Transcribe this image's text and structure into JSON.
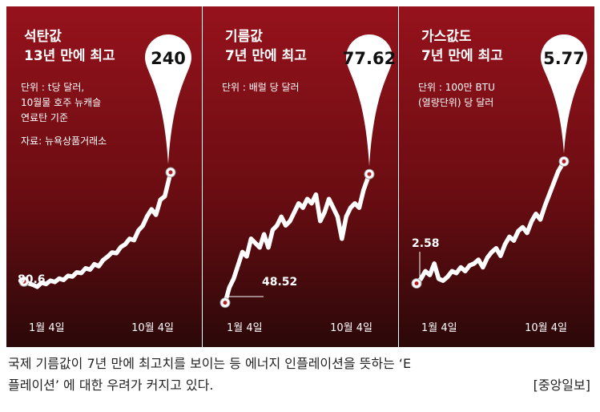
{
  "chart_data": [
    {
      "type": "line",
      "title_lines": [
        "석탄값",
        "13년 만에 최고"
      ],
      "notes": [
        "단위 : t당 달러,",
        "10월물 호주 뉴캐슬",
        "연료탄 기준",
        "자료: 뉴욕상품거래소"
      ],
      "x_tick_labels": [
        "1월 4일",
        "10월 4일"
      ],
      "start_label": "80.6",
      "end_label": "240",
      "ylim": [
        40,
        330
      ],
      "x": [
        0,
        3,
        6,
        9,
        12,
        15,
        18,
        21,
        24,
        27,
        30,
        33,
        36,
        39,
        42,
        45,
        48,
        51,
        54,
        57,
        60,
        63,
        66,
        69,
        72,
        75,
        78,
        81,
        84,
        87,
        90,
        93,
        96,
        100
      ],
      "values": [
        80.6,
        78,
        76,
        73,
        79,
        77,
        82,
        80,
        85,
        83,
        89,
        88,
        94,
        93,
        100,
        98,
        106,
        103,
        112,
        117,
        123,
        122,
        131,
        135,
        143,
        141,
        155,
        162,
        176,
        186,
        178,
        200,
        205,
        240
      ]
    },
    {
      "type": "line",
      "title_lines": [
        "기름값",
        "7년 만에 최고"
      ],
      "notes": [
        "단위 : 배럴 당 달러"
      ],
      "x_tick_labels": [
        "1월 4일",
        "10월 4일"
      ],
      "start_label": "48.52",
      "end_label": "77.62",
      "ylim": [
        47,
        92
      ],
      "x": [
        0,
        3,
        6,
        9,
        12,
        15,
        18,
        21,
        24,
        27,
        30,
        33,
        36,
        39,
        42,
        45,
        48,
        51,
        54,
        57,
        60,
        63,
        66,
        69,
        72,
        75,
        78,
        81,
        84,
        87,
        90,
        93,
        96,
        100
      ],
      "values": [
        48.52,
        52,
        54,
        57,
        60,
        59,
        63,
        62,
        61,
        64,
        61,
        65,
        66,
        68,
        66,
        67,
        69,
        71,
        70,
        72,
        71,
        73,
        67,
        69,
        72,
        70,
        68,
        63,
        68,
        70,
        71,
        70,
        74,
        77.62
      ]
    },
    {
      "type": "line",
      "title_lines": [
        "가스값도",
        "7년 만에 최고"
      ],
      "notes": [
        "단위 : 100만 BTU",
        "(열량단위) 당 달러"
      ],
      "x_tick_labels": [
        "1월 4일",
        "10월 4일"
      ],
      "start_label": "2.58",
      "end_label": "5.77",
      "ylim": [
        1.9,
        7.1
      ],
      "x": [
        0,
        3,
        6,
        9,
        12,
        15,
        18,
        21,
        24,
        27,
        30,
        33,
        36,
        39,
        42,
        45,
        48,
        51,
        54,
        57,
        60,
        63,
        66,
        69,
        72,
        75,
        78,
        81,
        84,
        87,
        90,
        93,
        96,
        100
      ],
      "values": [
        2.58,
        2.7,
        2.9,
        2.8,
        3.1,
        2.7,
        2.65,
        2.75,
        2.9,
        2.85,
        3.0,
        2.9,
        3.05,
        3.1,
        3.2,
        3.0,
        3.25,
        3.4,
        3.5,
        3.3,
        3.6,
        3.8,
        3.7,
        3.95,
        4.05,
        3.9,
        4.2,
        4.4,
        4.25,
        4.6,
        4.9,
        5.2,
        5.5,
        5.77
      ]
    }
  ],
  "caption": {
    "line1": "국제 기름값이 7년 만에 최고치를 보이는 등 에너지 인플레이션을 뜻하는 ‘E",
    "line2": "플레이션’ 에 대한 우려가 커지고 있다.",
    "credit": "[중앙일보]"
  },
  "colors": {
    "bg_top": "#96121c",
    "bg_bottom": "#2b0809",
    "line": "#ffffff",
    "marker_fill": "#ffffff"
  }
}
